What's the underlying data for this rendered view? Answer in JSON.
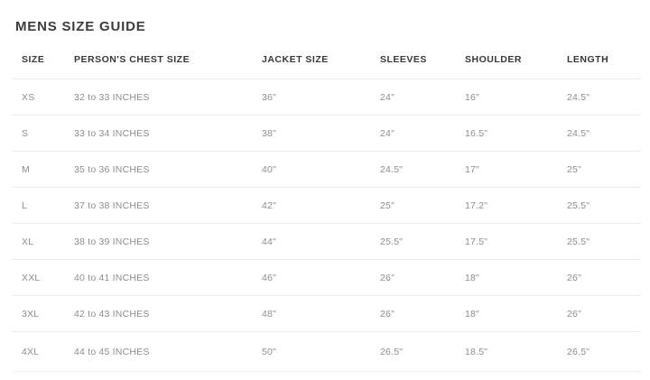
{
  "page": {
    "title": "MENS SIZE GUIDE"
  },
  "table": {
    "columns": [
      "SIZE",
      "PERSON'S CHEST SIZE",
      "JACKET SIZE",
      "SLEEVES",
      "SHOULDER",
      "LENGTH"
    ],
    "rows": [
      [
        "XS",
        "32 to 33 INCHES",
        "36\"",
        "24\"",
        "16\"",
        "24.5\""
      ],
      [
        "S",
        "33 to 34 INCHES",
        "38\"",
        "24\"",
        "16.5\"",
        "24.5\""
      ],
      [
        "M",
        "35 to 36 INCHES",
        "40\"",
        "24.5\"",
        "17\"",
        "25\""
      ],
      [
        "L",
        "37 to 38 INCHES",
        "42\"",
        "25\"",
        "17.2\"",
        "25.5\""
      ],
      [
        "XL",
        "38 to 39 INCHES",
        "44\"",
        "25.5\"",
        "17.5\"",
        "25.5\""
      ],
      [
        "XXL",
        "40 to 41 INCHES",
        "46\"",
        "26\"",
        "18\"",
        "26\""
      ],
      [
        "3XL",
        "42 to 43 INCHES",
        "48\"",
        "26\"",
        "18\"",
        "26\""
      ],
      [
        "4XL",
        "44 to 45 INCHES",
        "50\"",
        "26.5\"",
        "18.5\"",
        "26.5\""
      ]
    ],
    "colors": {
      "title_text": "#3d3d3d",
      "header_text": "#383838",
      "cell_text": "#8e8e8e",
      "divider": "#ededed"
    }
  }
}
